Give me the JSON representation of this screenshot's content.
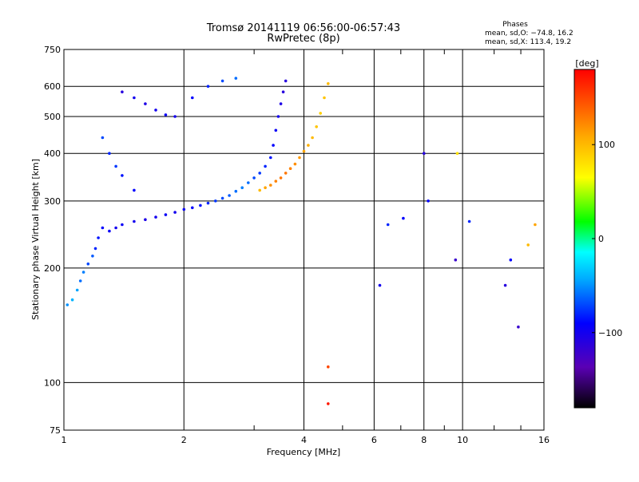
{
  "chart_data": {
    "type": "scatter",
    "title": "Tromsø 20141119 06:56:00-06:57:43",
    "subtitle": "RwPretec (8p)",
    "xlabel": "Frequency [MHz]",
    "ylabel": "Stationary phase Virtual Height [km]",
    "x_scale": "log",
    "y_scale": "log",
    "xlim": [
      1,
      16
    ],
    "ylim": [
      75,
      750
    ],
    "x_ticks": [
      1,
      2,
      4,
      6,
      8,
      10,
      16
    ],
    "x_tick_labels": [
      "1",
      "2",
      "4",
      "6",
      "8",
      "10",
      "16"
    ],
    "y_ticks": [
      75,
      100,
      200,
      300,
      400,
      500,
      600,
      750
    ],
    "y_tick_labels": [
      "75",
      "100",
      "200",
      "300",
      "400",
      "500",
      "600",
      "750"
    ],
    "grid": true,
    "phase_info": {
      "heading": "Phases",
      "o_line": "mean, sd,O: −74.8, 16.2",
      "x_line": "mean, sd,X: 113.4, 19.2"
    },
    "colorbar": {
      "unit": "[deg]",
      "min": -180,
      "max": 180,
      "ticks": [
        100,
        0,
        -100
      ],
      "tick_labels": [
        "100",
        "0",
        "−100"
      ]
    },
    "series": [
      {
        "points": [
          [
            1.02,
            160,
            -50
          ],
          [
            1.05,
            165,
            -40
          ],
          [
            1.08,
            175,
            -45
          ],
          [
            1.1,
            185,
            -60
          ],
          [
            1.12,
            195,
            -55
          ],
          [
            1.15,
            205,
            -70
          ],
          [
            1.18,
            215,
            -65
          ],
          [
            1.2,
            225,
            -80
          ],
          [
            1.22,
            240,
            -85
          ],
          [
            1.25,
            255,
            -90
          ],
          [
            1.3,
            250,
            -95
          ],
          [
            1.35,
            255,
            -100
          ],
          [
            1.4,
            260,
            -95
          ],
          [
            1.5,
            265,
            -100
          ],
          [
            1.6,
            268,
            -105
          ],
          [
            1.7,
            272,
            -100
          ],
          [
            1.8,
            276,
            -95
          ],
          [
            1.9,
            280,
            -100
          ],
          [
            2.0,
            285,
            -95
          ],
          [
            2.1,
            288,
            -90
          ],
          [
            2.2,
            292,
            -85
          ],
          [
            2.3,
            296,
            -80
          ],
          [
            2.4,
            300,
            -75
          ],
          [
            2.5,
            305,
            -70
          ],
          [
            2.6,
            310,
            -65
          ],
          [
            2.7,
            318,
            -60
          ],
          [
            2.8,
            325,
            -55
          ],
          [
            2.9,
            335,
            -60
          ],
          [
            3.0,
            345,
            -70
          ],
          [
            3.1,
            355,
            -75
          ],
          [
            3.2,
            370,
            -80
          ],
          [
            3.3,
            390,
            -85
          ],
          [
            3.35,
            420,
            -90
          ],
          [
            3.4,
            460,
            -95
          ],
          [
            3.45,
            500,
            -100
          ],
          [
            3.5,
            540,
            -105
          ],
          [
            3.55,
            580,
            -110
          ],
          [
            3.6,
            620,
            -110
          ],
          [
            3.1,
            320,
            100
          ],
          [
            3.2,
            325,
            110
          ],
          [
            3.3,
            330,
            120
          ],
          [
            3.4,
            338,
            125
          ],
          [
            3.5,
            345,
            130
          ],
          [
            3.6,
            355,
            130
          ],
          [
            3.7,
            365,
            125
          ],
          [
            3.8,
            375,
            120
          ],
          [
            3.9,
            390,
            115
          ],
          [
            4.0,
            405,
            110
          ],
          [
            4.1,
            420,
            105
          ],
          [
            4.2,
            440,
            100
          ],
          [
            4.3,
            470,
            95
          ],
          [
            4.4,
            510,
            90
          ],
          [
            4.5,
            560,
            95
          ],
          [
            4.6,
            610,
            100
          ],
          [
            1.4,
            580,
            -110
          ],
          [
            1.5,
            560,
            -100
          ],
          [
            1.6,
            540,
            -105
          ],
          [
            1.7,
            520,
            -100
          ],
          [
            1.8,
            505,
            -95
          ],
          [
            1.9,
            500,
            -100
          ],
          [
            2.1,
            560,
            -90
          ],
          [
            2.3,
            600,
            -80
          ],
          [
            2.5,
            620,
            -70
          ],
          [
            2.7,
            630,
            -60
          ],
          [
            1.25,
            440,
            -70
          ],
          [
            1.3,
            400,
            -80
          ],
          [
            1.35,
            370,
            -75
          ],
          [
            1.4,
            350,
            -85
          ],
          [
            1.5,
            320,
            -90
          ],
          [
            6.2,
            180,
            -100
          ],
          [
            6.5,
            260,
            -80
          ],
          [
            7.1,
            270,
            -90
          ],
          [
            8.0,
            400,
            -110
          ],
          [
            8.2,
            300,
            -90
          ],
          [
            9.6,
            210,
            -120
          ],
          [
            10.4,
            265,
            -80
          ],
          [
            12.8,
            180,
            -110
          ],
          [
            13.2,
            210,
            -90
          ],
          [
            13.8,
            140,
            -120
          ],
          [
            14.6,
            230,
            100
          ],
          [
            15.2,
            260,
            110
          ],
          [
            4.6,
            110,
            150
          ],
          [
            4.6,
            88,
            170
          ],
          [
            9.7,
            400,
            80
          ]
        ]
      }
    ]
  }
}
